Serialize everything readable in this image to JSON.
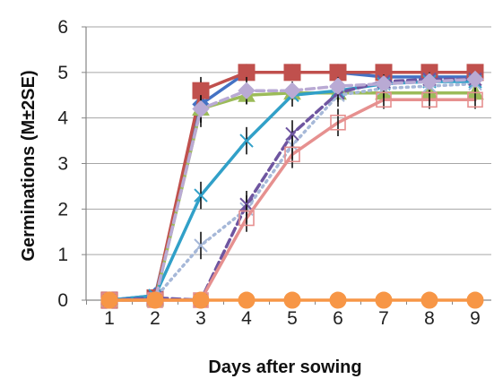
{
  "chart_data": {
    "type": "line",
    "title": "",
    "xlabel": "Days after sowing",
    "ylabel": "Germinations (M±2SE)",
    "x": [
      1,
      2,
      3,
      4,
      5,
      6,
      7,
      8,
      9
    ],
    "xlim": [
      1,
      9
    ],
    "ylim": [
      0,
      6
    ],
    "yticks": [
      0,
      1,
      2,
      3,
      4,
      5,
      6
    ],
    "grid": "horizontal",
    "legend": "none",
    "series": [
      {
        "color": "#4472c4",
        "marker": "diamond",
        "dash": "solid",
        "values": [
          0,
          0.1,
          4.3,
          5.0,
          5.0,
          5.0,
          4.9,
          4.9,
          4.9
        ],
        "err": [
          0,
          0,
          0.5,
          0.1,
          0.1,
          0.1,
          0.1,
          0.1,
          0.1
        ]
      },
      {
        "color": "#c0504d",
        "marker": "square",
        "dash": "solid",
        "values": [
          0,
          0.05,
          4.6,
          5.0,
          5.0,
          5.0,
          5.0,
          5.0,
          5.0
        ],
        "err": [
          0,
          0,
          0.3,
          0,
          0,
          0,
          0,
          0,
          0
        ]
      },
      {
        "color": "#9bbb59",
        "marker": "triangle",
        "dash": "solid",
        "values": [
          0,
          0,
          4.2,
          4.5,
          4.55,
          4.55,
          4.55,
          4.55,
          4.55
        ],
        "err": [
          0,
          0,
          0.3,
          0.2,
          0.1,
          0.1,
          0.1,
          0.1,
          0.1
        ]
      },
      {
        "color": "#31a0c8",
        "marker": "x",
        "dash": "solid",
        "values": [
          0,
          0.1,
          2.3,
          3.5,
          4.5,
          4.6,
          4.75,
          4.8,
          4.8
        ],
        "err": [
          0,
          0,
          0.3,
          0.3,
          0.25,
          0.2,
          0.2,
          0.2,
          0.2
        ]
      },
      {
        "color": "#a6b8d8",
        "marker": "x",
        "dash": "dotted",
        "values": [
          0,
          0.05,
          1.2,
          2.0,
          3.4,
          4.5,
          4.65,
          4.7,
          4.75
        ],
        "err": [
          0,
          0,
          0.3,
          0.3,
          0.3,
          0.25,
          0.2,
          0.2,
          0.2
        ]
      },
      {
        "color": "#6e55a0",
        "marker": "x",
        "dash": "dashed",
        "values": [
          0,
          0.05,
          0,
          2.1,
          3.65,
          4.55,
          4.8,
          4.85,
          4.85
        ],
        "err": [
          0,
          0,
          0,
          0.3,
          0.3,
          0.2,
          0.15,
          0.15,
          0.15
        ]
      },
      {
        "color": "#b9aad4",
        "marker": "diamond",
        "dash": "dashed",
        "values": [
          0,
          0,
          4.2,
          4.6,
          4.6,
          4.7,
          4.75,
          4.8,
          4.85
        ],
        "err": [
          0,
          0,
          0.3,
          0.3,
          0.2,
          0.2,
          0.15,
          0.15,
          0.15
        ]
      },
      {
        "color": "#e6908f",
        "marker": "open-square",
        "dash": "solid",
        "values": [
          0,
          0,
          0,
          1.8,
          3.2,
          3.9,
          4.4,
          4.4,
          4.4
        ],
        "err": [
          0,
          0,
          0,
          0.3,
          0.3,
          0.3,
          0.2,
          0.2,
          0.2
        ]
      },
      {
        "color": "#f79646",
        "marker": "circle",
        "dash": "solid",
        "values": [
          0,
          0,
          0,
          0,
          0,
          0,
          0,
          0,
          0
        ],
        "err": [
          0,
          0,
          0,
          0,
          0,
          0,
          0,
          0,
          0
        ]
      }
    ]
  }
}
